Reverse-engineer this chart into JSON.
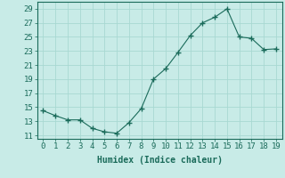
{
  "x": [
    0,
    1,
    2,
    3,
    4,
    5,
    6,
    7,
    8,
    9,
    10,
    11,
    12,
    13,
    14,
    15,
    16,
    17,
    18,
    19
  ],
  "y": [
    14.5,
    13.8,
    13.2,
    13.2,
    12.0,
    11.5,
    11.3,
    12.8,
    14.8,
    19.0,
    20.5,
    22.8,
    25.2,
    27.0,
    27.8,
    29.0,
    25.0,
    24.8,
    23.2,
    23.3
  ],
  "line_color": "#1a6b5a",
  "marker": "+",
  "marker_size": 4,
  "bg_color": "#c8ebe7",
  "grid_color": "#a8d8d2",
  "xlabel": "Humidex (Indice chaleur)",
  "ylim": [
    10.5,
    30
  ],
  "xlim": [
    -0.5,
    19.5
  ],
  "yticks": [
    11,
    13,
    15,
    17,
    19,
    21,
    23,
    25,
    27,
    29
  ],
  "xticks": [
    0,
    1,
    2,
    3,
    4,
    5,
    6,
    7,
    8,
    9,
    10,
    11,
    12,
    13,
    14,
    15,
    16,
    17,
    18,
    19
  ],
  "xlabel_fontsize": 7,
  "tick_fontsize": 6.5,
  "tick_color": "#1a6b5a",
  "xlabel_color": "#1a6b5a"
}
